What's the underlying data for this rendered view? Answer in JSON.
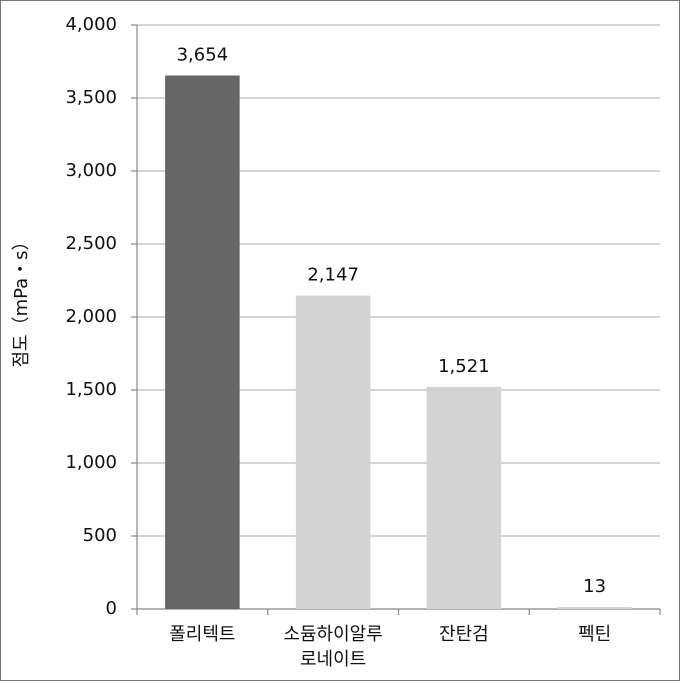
{
  "chart_data": {
    "type": "bar",
    "y_label": "점도（mPa・s）",
    "categories": [
      [
        "폴리텍트"
      ],
      [
        "소듐하이알루",
        "로네이트"
      ],
      [
        "잔탄검"
      ],
      [
        "펙틴"
      ]
    ],
    "values": [
      3654,
      2147,
      1521,
      13
    ],
    "value_labels": [
      "3,654",
      "2,147",
      "1,521",
      "13"
    ],
    "colors": [
      "#666666",
      "#d3d3d3",
      "#d3d3d3",
      "#d3d3d3"
    ],
    "ylim": [
      0,
      4000
    ],
    "yticks": [
      0,
      500,
      {
        "value": 1000,
        "label": "1,000"
      },
      {
        "value": 1500,
        "label": "1,500"
      },
      {
        "value": 2000,
        "label": "2,000"
      },
      {
        "value": 2500,
        "label": "2,500"
      },
      {
        "value": 3000,
        "label": "3,000"
      },
      {
        "value": 3500,
        "label": "3,500"
      },
      {
        "value": 4000,
        "label": "4,000"
      }
    ],
    "grid": true
  }
}
